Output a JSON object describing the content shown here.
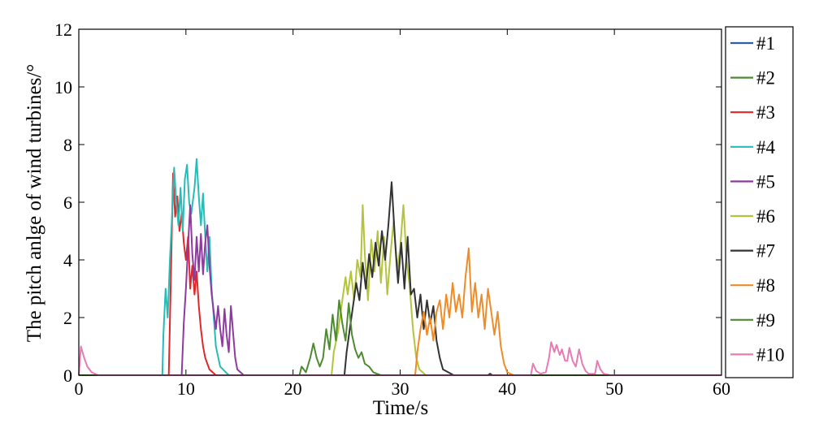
{
  "chart_data": {
    "type": "line",
    "title": "",
    "xlabel": "Time/s",
    "ylabel": "The pitch anlge of wind turbines/°",
    "xlim": [
      0,
      60
    ],
    "ylim": [
      0,
      12
    ],
    "xticks": [
      "0",
      "10",
      "20",
      "30",
      "40",
      "50",
      "60"
    ],
    "yticks": [
      "0",
      "2",
      "4",
      "6",
      "8",
      "10",
      "12"
    ],
    "grid": false,
    "legend_position": "outside-right",
    "series": [
      {
        "name": "#1",
        "color": "#2e5ea6",
        "points": [
          [
            0,
            0
          ],
          [
            60,
            0
          ]
        ]
      },
      {
        "name": "#2",
        "color": "#4e8a32",
        "points": [
          [
            0,
            0
          ],
          [
            60,
            0
          ]
        ]
      },
      {
        "name": "#3",
        "color": "#e0282a",
        "points": [
          [
            0,
            0
          ],
          [
            8.4,
            0
          ],
          [
            8.6,
            3.5
          ],
          [
            8.8,
            7.0
          ],
          [
            9.0,
            5.5
          ],
          [
            9.2,
            6.2
          ],
          [
            9.4,
            5.0
          ],
          [
            9.6,
            5.6
          ],
          [
            9.8,
            4.6
          ],
          [
            10.0,
            4.0
          ],
          [
            10.2,
            4.8
          ],
          [
            10.4,
            3.0
          ],
          [
            10.6,
            3.8
          ],
          [
            10.8,
            2.8
          ],
          [
            11.0,
            3.6
          ],
          [
            11.2,
            2.4
          ],
          [
            11.4,
            1.6
          ],
          [
            11.6,
            1.0
          ],
          [
            11.8,
            0.6
          ],
          [
            12.2,
            0.2
          ],
          [
            12.8,
            0
          ],
          [
            60,
            0
          ]
        ]
      },
      {
        "name": "#4",
        "color": "#28bcb8",
        "points": [
          [
            0,
            0
          ],
          [
            7.8,
            0
          ],
          [
            7.9,
            1.4
          ],
          [
            8.1,
            3.0
          ],
          [
            8.3,
            2.0
          ],
          [
            8.5,
            4.0
          ],
          [
            8.7,
            5.5
          ],
          [
            8.9,
            7.2
          ],
          [
            9.1,
            6.0
          ],
          [
            9.3,
            5.2
          ],
          [
            9.5,
            6.5
          ],
          [
            9.7,
            5.0
          ],
          [
            9.9,
            6.8
          ],
          [
            10.1,
            7.3
          ],
          [
            10.3,
            6.0
          ],
          [
            10.5,
            5.6
          ],
          [
            10.8,
            6.5
          ],
          [
            11.0,
            7.5
          ],
          [
            11.2,
            6.2
          ],
          [
            11.4,
            5.2
          ],
          [
            11.6,
            6.3
          ],
          [
            11.8,
            4.8
          ],
          [
            12.0,
            3.6
          ],
          [
            12.2,
            4.8
          ],
          [
            12.4,
            3.0
          ],
          [
            12.6,
            2.0
          ],
          [
            12.8,
            1.0
          ],
          [
            13.2,
            0.3
          ],
          [
            14.0,
            0
          ],
          [
            60,
            0
          ]
        ]
      },
      {
        "name": "#5",
        "color": "#8e3aa0",
        "points": [
          [
            0,
            0
          ],
          [
            9.6,
            0
          ],
          [
            9.8,
            1.8
          ],
          [
            10.0,
            3.0
          ],
          [
            10.2,
            4.5
          ],
          [
            10.4,
            5.9
          ],
          [
            10.6,
            4.2
          ],
          [
            10.8,
            3.3
          ],
          [
            11.0,
            4.8
          ],
          [
            11.2,
            3.6
          ],
          [
            11.4,
            4.9
          ],
          [
            11.6,
            3.5
          ],
          [
            11.8,
            4.6
          ],
          [
            12.0,
            5.2
          ],
          [
            12.2,
            3.8
          ],
          [
            12.4,
            2.8
          ],
          [
            12.6,
            2.2
          ],
          [
            12.8,
            1.6
          ],
          [
            13.0,
            2.4
          ],
          [
            13.2,
            1.6
          ],
          [
            13.4,
            1.0
          ],
          [
            13.6,
            2.3
          ],
          [
            13.8,
            1.4
          ],
          [
            14.0,
            0.8
          ],
          [
            14.2,
            2.4
          ],
          [
            14.4,
            1.5
          ],
          [
            14.6,
            0.6
          ],
          [
            14.8,
            0.2
          ],
          [
            15.4,
            0
          ],
          [
            60,
            0
          ]
        ]
      },
      {
        "name": "#6",
        "color": "#b4c43a",
        "points": [
          [
            0,
            0
          ],
          [
            23.6,
            0
          ],
          [
            23.8,
            0.8
          ],
          [
            24.2,
            1.5
          ],
          [
            24.6,
            2.6
          ],
          [
            24.9,
            3.4
          ],
          [
            25.1,
            2.8
          ],
          [
            25.4,
            3.6
          ],
          [
            25.7,
            2.6
          ],
          [
            26.0,
            4.0
          ],
          [
            26.3,
            3.4
          ],
          [
            26.5,
            5.9
          ],
          [
            26.7,
            4.2
          ],
          [
            27.0,
            2.6
          ],
          [
            27.3,
            4.7
          ],
          [
            27.6,
            3.6
          ],
          [
            27.9,
            5.0
          ],
          [
            28.2,
            3.2
          ],
          [
            28.5,
            4.8
          ],
          [
            28.8,
            2.8
          ],
          [
            29.1,
            4.2
          ],
          [
            29.4,
            5.4
          ],
          [
            29.7,
            3.6
          ],
          [
            30.0,
            4.4
          ],
          [
            30.3,
            5.9
          ],
          [
            30.6,
            4.0
          ],
          [
            30.9,
            3.0
          ],
          [
            31.2,
            1.6
          ],
          [
            31.5,
            0.6
          ],
          [
            31.8,
            0.2
          ],
          [
            32.4,
            0
          ],
          [
            60,
            0
          ]
        ]
      },
      {
        "name": "#7",
        "color": "#333333",
        "points": [
          [
            0,
            0
          ],
          [
            24.8,
            0
          ],
          [
            25.0,
            0.8
          ],
          [
            25.3,
            1.6
          ],
          [
            25.6,
            2.4
          ],
          [
            25.9,
            3.2
          ],
          [
            26.2,
            2.6
          ],
          [
            26.5,
            3.9
          ],
          [
            26.8,
            3.0
          ],
          [
            27.1,
            4.2
          ],
          [
            27.4,
            3.4
          ],
          [
            27.7,
            4.6
          ],
          [
            28.0,
            3.8
          ],
          [
            28.3,
            5.0
          ],
          [
            28.6,
            4.0
          ],
          [
            28.9,
            5.2
          ],
          [
            29.2,
            6.7
          ],
          [
            29.5,
            4.8
          ],
          [
            29.8,
            3.2
          ],
          [
            30.1,
            4.6
          ],
          [
            30.4,
            3.0
          ],
          [
            30.7,
            4.8
          ],
          [
            31.0,
            2.8
          ],
          [
            31.3,
            3.0
          ],
          [
            31.6,
            2.0
          ],
          [
            31.9,
            2.8
          ],
          [
            32.2,
            1.6
          ],
          [
            32.5,
            2.6
          ],
          [
            32.8,
            1.8
          ],
          [
            33.1,
            2.4
          ],
          [
            33.4,
            1.2
          ],
          [
            33.7,
            0.6
          ],
          [
            34.0,
            0.2
          ],
          [
            35.0,
            0
          ],
          [
            38.2,
            0
          ],
          [
            38.4,
            0.05
          ],
          [
            38.6,
            0
          ],
          [
            60,
            0
          ]
        ]
      },
      {
        "name": "#8",
        "color": "#f08c28",
        "points": [
          [
            0,
            0
          ],
          [
            31.4,
            0
          ],
          [
            31.6,
            0.8
          ],
          [
            31.9,
            1.6
          ],
          [
            32.2,
            2.2
          ],
          [
            32.5,
            1.4
          ],
          [
            32.8,
            2.0
          ],
          [
            33.1,
            1.2
          ],
          [
            33.4,
            2.2
          ],
          [
            33.7,
            2.6
          ],
          [
            34.0,
            1.6
          ],
          [
            34.3,
            2.8
          ],
          [
            34.6,
            2.0
          ],
          [
            34.9,
            3.2
          ],
          [
            35.2,
            2.2
          ],
          [
            35.5,
            2.8
          ],
          [
            35.8,
            2.0
          ],
          [
            36.1,
            3.4
          ],
          [
            36.4,
            4.4
          ],
          [
            36.7,
            2.2
          ],
          [
            37.0,
            3.2
          ],
          [
            37.3,
            2.0
          ],
          [
            37.6,
            2.8
          ],
          [
            37.9,
            1.6
          ],
          [
            38.2,
            3.0
          ],
          [
            38.5,
            2.2
          ],
          [
            38.8,
            1.4
          ],
          [
            39.1,
            2.2
          ],
          [
            39.4,
            1.0
          ],
          [
            39.7,
            0.4
          ],
          [
            40.0,
            0.1
          ],
          [
            40.6,
            0
          ],
          [
            60,
            0
          ]
        ]
      },
      {
        "name": "#9",
        "color": "#4e8a32",
        "points": [
          [
            0,
            0
          ],
          [
            20.6,
            0
          ],
          [
            20.8,
            0.3
          ],
          [
            21.2,
            0.1
          ],
          [
            21.6,
            0.6
          ],
          [
            21.9,
            1.1
          ],
          [
            22.2,
            0.6
          ],
          [
            22.5,
            0.3
          ],
          [
            22.8,
            0.6
          ],
          [
            23.1,
            1.6
          ],
          [
            23.4,
            0.9
          ],
          [
            23.7,
            2.1
          ],
          [
            24.0,
            1.2
          ],
          [
            24.3,
            2.6
          ],
          [
            24.6,
            1.8
          ],
          [
            24.9,
            1.2
          ],
          [
            25.2,
            2.5
          ],
          [
            25.5,
            1.4
          ],
          [
            25.8,
            0.9
          ],
          [
            26.1,
            0.6
          ],
          [
            26.4,
            0.8
          ],
          [
            26.7,
            0.4
          ],
          [
            27.1,
            0.3
          ],
          [
            27.5,
            0.1
          ],
          [
            28.2,
            0
          ],
          [
            60,
            0
          ]
        ]
      },
      {
        "name": "#10",
        "color": "#e87ab4",
        "points": [
          [
            0,
            0
          ],
          [
            0.2,
            1.0
          ],
          [
            0.5,
            0.6
          ],
          [
            0.8,
            0.3
          ],
          [
            1.2,
            0.1
          ],
          [
            1.8,
            0
          ],
          [
            42.2,
            0
          ],
          [
            42.4,
            0.4
          ],
          [
            42.7,
            0.15
          ],
          [
            43.1,
            0.05
          ],
          [
            43.6,
            0.1
          ],
          [
            43.9,
            0.6
          ],
          [
            44.1,
            1.15
          ],
          [
            44.4,
            0.8
          ],
          [
            44.6,
            1.05
          ],
          [
            44.9,
            0.7
          ],
          [
            45.1,
            0.9
          ],
          [
            45.4,
            0.5
          ],
          [
            45.6,
            0.5
          ],
          [
            45.8,
            0.95
          ],
          [
            46.1,
            0.5
          ],
          [
            46.4,
            0.3
          ],
          [
            46.7,
            0.9
          ],
          [
            47.0,
            0.4
          ],
          [
            47.3,
            0.15
          ],
          [
            47.6,
            0.05
          ],
          [
            48.2,
            0.05
          ],
          [
            48.4,
            0.5
          ],
          [
            48.7,
            0.2
          ],
          [
            49.0,
            0.05
          ],
          [
            49.6,
            0
          ],
          [
            60,
            0
          ]
        ]
      }
    ]
  }
}
